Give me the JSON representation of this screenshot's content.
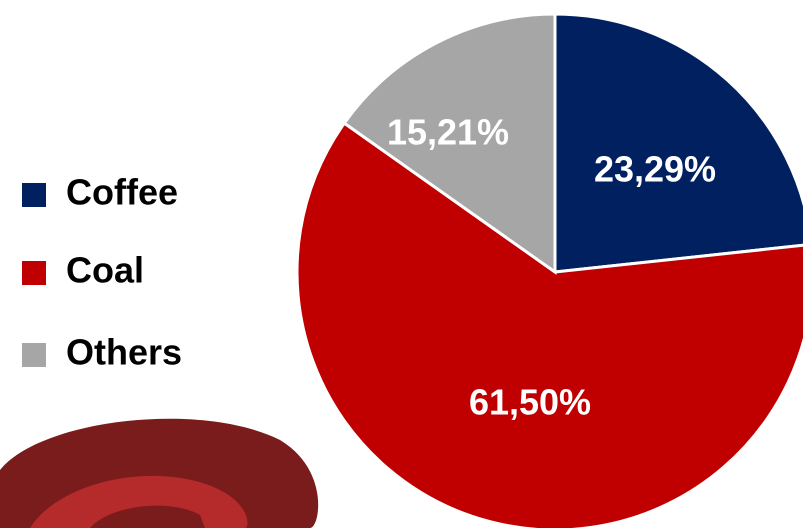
{
  "chart_data": {
    "type": "pie",
    "categories": [
      "Coffee",
      "Coal",
      "Others"
    ],
    "values": [
      23.29,
      61.5,
      15.21
    ],
    "value_labels": [
      "23,29%",
      "61,50%",
      "15,21%"
    ],
    "colors": [
      "#002060",
      "#c00000",
      "#a6a6a6"
    ],
    "label_colors": [
      "#ffffff",
      "#ffffff",
      "#ffffff"
    ],
    "legend": "left"
  }
}
